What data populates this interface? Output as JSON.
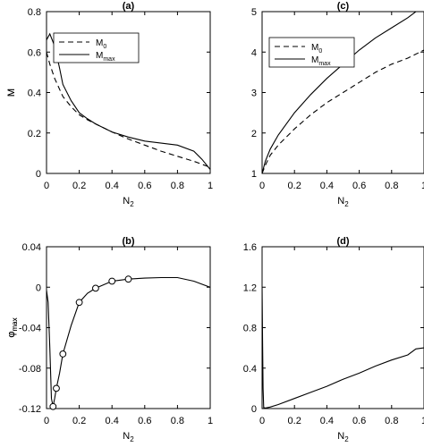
{
  "chart_data": [
    {
      "panel": "(a)",
      "type": "line",
      "title": "(a)",
      "xlabel": "N",
      "xlabel_sub": "2",
      "ylabel": "M",
      "xlim": [
        0,
        1
      ],
      "ylim": [
        0,
        0.8
      ],
      "xticks": [
        "0",
        "0.2",
        "0.4",
        "0.6",
        "0.8",
        "1"
      ],
      "yticks": [
        "0",
        "0.2",
        "0.4",
        "0.6",
        "0.8"
      ],
      "legend": "top-right",
      "series": [
        {
          "name": "M",
          "name_sub": "0",
          "style": "dashed",
          "x": [
            0,
            0.02,
            0.05,
            0.1,
            0.15,
            0.2,
            0.25,
            0.3,
            0.4,
            0.5,
            0.6,
            0.7,
            0.8,
            0.9,
            0.95,
            1.0
          ],
          "y": [
            0.6,
            0.54,
            0.47,
            0.38,
            0.33,
            0.29,
            0.265,
            0.245,
            0.205,
            0.17,
            0.14,
            0.11,
            0.085,
            0.06,
            0.045,
            0.03
          ]
        },
        {
          "name": "M",
          "name_sub": "max",
          "style": "solid",
          "x": [
            0,
            0.02,
            0.05,
            0.08,
            0.1,
            0.15,
            0.2,
            0.25,
            0.3,
            0.4,
            0.5,
            0.6,
            0.7,
            0.8,
            0.9,
            0.95,
            1.0
          ],
          "y": [
            0.66,
            0.69,
            0.63,
            0.52,
            0.44,
            0.36,
            0.3,
            0.27,
            0.245,
            0.205,
            0.18,
            0.16,
            0.15,
            0.14,
            0.11,
            0.07,
            0.02
          ]
        }
      ]
    },
    {
      "panel": "(b)",
      "type": "line",
      "title": "(b)",
      "xlabel": "N",
      "xlabel_sub": "2",
      "ylabel": "φ",
      "ylabel_sub": "max",
      "xlim": [
        0,
        1
      ],
      "ylim": [
        -0.12,
        0.04
      ],
      "xticks": [
        "0",
        "0.2",
        "0.4",
        "0.6",
        "0.8",
        "1"
      ],
      "yticks": [
        "-0.12",
        "-0.08",
        "-0.04",
        "0",
        "0.04"
      ],
      "series": [
        {
          "style": "solid",
          "x": [
            0,
            0.01,
            0.02,
            0.03,
            0.04,
            0.05,
            0.06,
            0.08,
            0.1,
            0.15,
            0.2,
            0.25,
            0.3,
            0.4,
            0.5,
            0.6,
            0.7,
            0.8,
            0.9,
            1.0
          ],
          "y": [
            -0.003,
            -0.015,
            -0.06,
            -0.11,
            -0.118,
            -0.11,
            -0.1,
            -0.085,
            -0.066,
            -0.038,
            -0.015,
            -0.006,
            -0.001,
            0.006,
            0.008,
            0.009,
            0.0095,
            0.0095,
            0.006,
            0.0
          ]
        }
      ],
      "markers": {
        "shape": "open-circle",
        "x": [
          0.04,
          0.06,
          0.1,
          0.2,
          0.3,
          0.4,
          0.5
        ],
        "y": [
          -0.118,
          -0.1,
          -0.066,
          -0.015,
          -0.001,
          0.006,
          0.008
        ]
      }
    },
    {
      "panel": "(c)",
      "type": "line",
      "title": "(c)",
      "xlabel": "N",
      "xlabel_sub": "2",
      "ylabel": "M",
      "xlim": [
        0,
        1
      ],
      "ylim": [
        1,
        5
      ],
      "xticks": [
        "0",
        "0.2",
        "0.4",
        "0.6",
        "0.8",
        "1"
      ],
      "yticks": [
        "1",
        "2",
        "3",
        "4",
        "5"
      ],
      "legend": "top-left",
      "series": [
        {
          "name": "M",
          "name_sub": "0",
          "style": "dashed",
          "x": [
            0,
            0.02,
            0.05,
            0.1,
            0.2,
            0.3,
            0.4,
            0.5,
            0.6,
            0.7,
            0.8,
            0.9,
            1.0
          ],
          "y": [
            1.0,
            1.2,
            1.45,
            1.7,
            2.1,
            2.45,
            2.75,
            3.0,
            3.25,
            3.5,
            3.7,
            3.85,
            4.05
          ]
        },
        {
          "name": "M",
          "name_sub": "max",
          "style": "solid",
          "x": [
            0,
            0.02,
            0.05,
            0.1,
            0.2,
            0.3,
            0.4,
            0.5,
            0.6,
            0.7,
            0.8,
            0.9,
            1.0
          ],
          "y": [
            1.0,
            1.3,
            1.6,
            1.95,
            2.5,
            2.95,
            3.35,
            3.7,
            4.05,
            4.35,
            4.6,
            4.85,
            5.15
          ]
        }
      ]
    },
    {
      "panel": "(d)",
      "type": "line",
      "title": "(d)",
      "xlabel": "N",
      "xlabel_sub": "2",
      "ylabel": "φ",
      "ylabel_sub": "max",
      "xlim": [
        0,
        1
      ],
      "ylim": [
        0,
        1.6
      ],
      "xticks": [
        "0",
        "0.2",
        "0.4",
        "0.6",
        "0.8",
        "1"
      ],
      "yticks": [
        "0",
        "0.4",
        "0.8",
        "1.2",
        "1.6"
      ],
      "series": [
        {
          "style": "solid",
          "x": [
            0,
            0.003,
            0.006,
            0.01,
            0.02,
            0.05,
            0.1,
            0.2,
            0.3,
            0.4,
            0.5,
            0.6,
            0.7,
            0.8,
            0.9,
            0.95,
            1.0
          ],
          "y": [
            1.2,
            0.7,
            0.2,
            0.01,
            0.005,
            0.015,
            0.04,
            0.1,
            0.16,
            0.22,
            0.29,
            0.35,
            0.42,
            0.48,
            0.53,
            0.59,
            0.6
          ]
        }
      ]
    }
  ]
}
